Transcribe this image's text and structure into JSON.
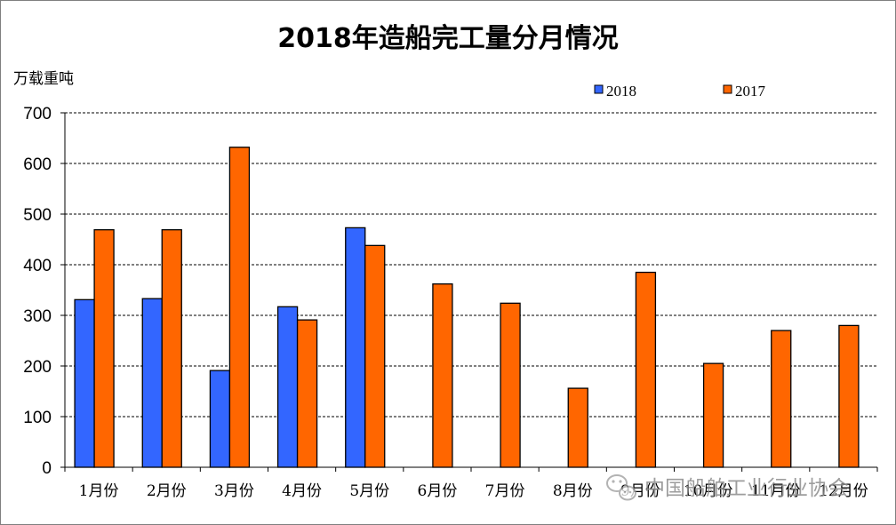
{
  "chart_data": {
    "type": "bar",
    "title": "2018年造船完工量分月情况",
    "ylabel": "万载重吨",
    "xlabel": "",
    "ylim": [
      0,
      700
    ],
    "yticks": [
      0,
      100,
      200,
      300,
      400,
      500,
      600,
      700
    ],
    "grid": "horizontal dashed",
    "legend_position": "top-right",
    "categories": [
      "1月份",
      "2月份",
      "3月份",
      "4月份",
      "5月份",
      "6月份",
      "7月份",
      "8月份",
      "9月份",
      "10月份",
      "11月份",
      "12月份"
    ],
    "series": [
      {
        "name": "2018",
        "color": "#3366ff",
        "values": [
          331,
          333,
          191,
          317,
          473,
          null,
          null,
          null,
          null,
          null,
          null,
          null
        ]
      },
      {
        "name": "2017",
        "color": "#ff6600",
        "values": [
          469,
          469,
          632,
          291,
          438,
          362,
          324,
          156,
          385,
          205,
          270,
          280
        ]
      }
    ]
  },
  "watermark": {
    "text": "中国船舶工业行业协会",
    "icon": "wechat-icon"
  }
}
